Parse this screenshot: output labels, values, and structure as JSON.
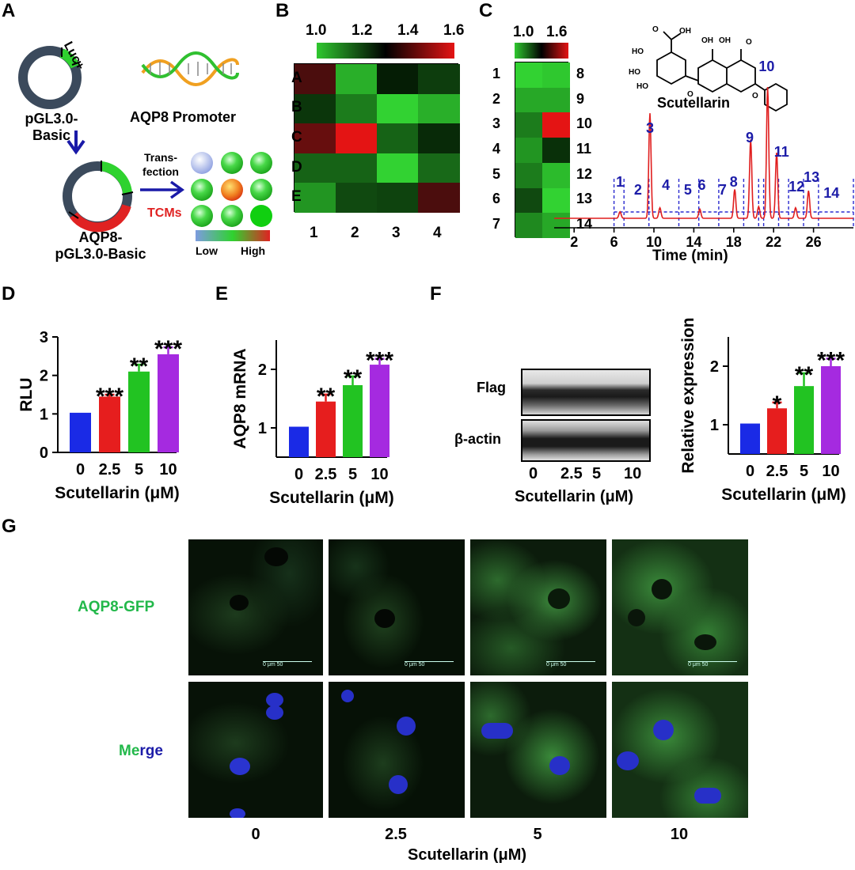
{
  "panels": {
    "a": {
      "letter": "A",
      "plasmid1_name": "pGL3.0-\nBasic",
      "luc_label": "Luc+",
      "promoter_label": "AQP8 Promoter",
      "plasmid2_name": "AQP8-\npGL3.0-Basic",
      "transfection_label": "Trans-\nfection",
      "tcms_label": "TCMs",
      "scale_low": "Low",
      "scale_high": "High",
      "colors": {
        "luc": "#2fd22f",
        "insert": "#e02222",
        "backbone": "#3b4a5c",
        "arrow": "#1a1aa8"
      }
    },
    "b": {
      "letter": "B"
    },
    "c": {
      "letter": "C",
      "compound_name": "Scutellarin",
      "xlabel": "Time (min)"
    },
    "d": {
      "letter": "D"
    },
    "e": {
      "letter": "E"
    },
    "f": {
      "letter": "F",
      "blot_rows": [
        "Flag",
        "β-actin"
      ],
      "blot_ticks": [
        "0",
        "2.5",
        "5",
        "10"
      ],
      "blot_xlabel": "Scutellarin (μM)"
    },
    "g": {
      "letter": "G",
      "row_labels": [
        "AQP8-GFP"
      ],
      "merge_label_part1": "Me",
      "merge_label_part2": "rge",
      "col_labels": [
        "0",
        "2.5",
        "5",
        "10"
      ],
      "xlabel": "Scutellarin (μM)",
      "scalebar_text": "0    μm    50"
    }
  },
  "chart_data": [
    {
      "id": "heatmap_B",
      "type": "heatmap",
      "colorbar_ticks": [
        "1.0",
        "1.2",
        "1.4",
        "1.6"
      ],
      "colorbar_range": [
        1.0,
        1.6
      ],
      "rows": [
        "A",
        "B",
        "C",
        "D",
        "E"
      ],
      "cols": [
        "1",
        "2",
        "3",
        "4"
      ],
      "values": [
        [
          1.38,
          1.04,
          1.27,
          1.22
        ],
        [
          1.23,
          1.12,
          0.98,
          1.04
        ],
        [
          1.42,
          1.6,
          1.16,
          1.25
        ],
        [
          1.16,
          1.16,
          0.88,
          1.15
        ],
        [
          1.08,
          1.2,
          1.21,
          1.38
        ]
      ]
    },
    {
      "id": "heatmap_C",
      "type": "heatmap",
      "colorbar_ticks": [
        "1.0",
        "1.6"
      ],
      "colorbar_range": [
        1.0,
        1.6
      ],
      "left_labels": [
        "1",
        "2",
        "3",
        "4",
        "5",
        "6",
        "7"
      ],
      "right_labels": [
        "8",
        "9",
        "10",
        "11",
        "12",
        "13",
        "14"
      ],
      "values": [
        [
          0.95,
          1.0
        ],
        [
          1.05,
          1.05
        ],
        [
          1.12,
          1.6
        ],
        [
          1.08,
          1.24
        ],
        [
          1.12,
          1.02
        ],
        [
          1.2,
          0.92
        ],
        [
          1.1,
          1.05
        ]
      ]
    },
    {
      "id": "chromatogram_C",
      "type": "line",
      "xlabel": "Time (min)",
      "xticks": [
        2,
        6,
        10,
        14,
        18,
        22,
        26
      ],
      "xlim": [
        0,
        30
      ],
      "peaks": [
        {
          "t": 6.6,
          "h": 0.05
        },
        {
          "t": 9.6,
          "h": 0.8
        },
        {
          "t": 10.6,
          "h": 0.08
        },
        {
          "t": 14.6,
          "h": 0.07
        },
        {
          "t": 18.1,
          "h": 0.22
        },
        {
          "t": 19.7,
          "h": 0.6
        },
        {
          "t": 20.5,
          "h": 0.09
        },
        {
          "t": 21.4,
          "h": 1.0
        },
        {
          "t": 22.3,
          "h": 0.5
        },
        {
          "t": 24.2,
          "h": 0.08
        },
        {
          "t": 25.5,
          "h": 0.21
        }
      ],
      "segment_boundaries": [
        6,
        7,
        9.5,
        12.5,
        14.5,
        16.5,
        19,
        20.5,
        21,
        22.5,
        23.5,
        25,
        26.5,
        30
      ],
      "segment_labels": [
        "1",
        "2",
        "3",
        "4",
        "5",
        "6",
        "7",
        "8",
        "9",
        "10",
        "11",
        "12",
        "13",
        "14"
      ],
      "color": "#e01e1e"
    },
    {
      "id": "bar_D",
      "type": "bar",
      "categories": [
        "0",
        "2.5",
        "5",
        "10"
      ],
      "values": [
        1.03,
        1.45,
        2.1,
        2.55
      ],
      "errors": [
        0.0,
        0.05,
        0.18,
        0.18
      ],
      "significance": [
        "",
        "***",
        "**",
        "***"
      ],
      "ylabel": "RLU",
      "xlabel": "Scutellarin (μM)",
      "ylim": [
        0,
        3
      ],
      "yticks": [
        "0",
        "1",
        "2",
        "3"
      ],
      "colors": [
        "#1a2ae6",
        "#e61e1e",
        "#22c322",
        "#a52ae0"
      ]
    },
    {
      "id": "bar_E",
      "type": "bar",
      "categories": [
        "0",
        "2.5",
        "5",
        "10"
      ],
      "values": [
        1.02,
        1.45,
        1.73,
        2.08
      ],
      "errors": [
        0.0,
        0.12,
        0.15,
        0.1
      ],
      "significance": [
        "",
        "**",
        "**",
        "***"
      ],
      "ylabel": "AQP8 mRNA",
      "xlabel": "Scutellarin (μM)",
      "ylim": [
        0.5,
        2.5
      ],
      "yticks": [
        "1",
        "2"
      ],
      "colors": [
        "#1a2ae6",
        "#e61e1e",
        "#22c322",
        "#a52ae0"
      ]
    },
    {
      "id": "bar_F",
      "type": "bar",
      "categories": [
        "0",
        "2.5",
        "5",
        "10"
      ],
      "values": [
        1.02,
        1.28,
        1.66,
        2.0
      ],
      "errors": [
        0.0,
        0.1,
        0.22,
        0.13
      ],
      "significance": [
        "",
        "*",
        "**",
        "***"
      ],
      "ylabel": "Relative expression",
      "xlabel": "Scutellarin (μM)",
      "ylim": [
        0.5,
        2.5
      ],
      "yticks": [
        "1",
        "2"
      ],
      "colors": [
        "#1a2ae6",
        "#e61e1e",
        "#22c322",
        "#a52ae0"
      ]
    }
  ]
}
